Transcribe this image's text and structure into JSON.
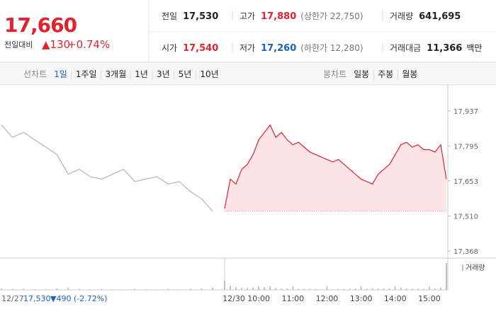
{
  "header": {
    "price": "17,660",
    "change_label": "전일대비",
    "change": "▲130",
    "rate": "+0.74%"
  },
  "summary": [
    {
      "label": "전일",
      "value": "17,530"
    },
    {
      "label": "고가",
      "value": "17,880",
      "note": "(상한가 22,750)"
    },
    {
      "label": "거래량",
      "value": "641,695"
    },
    {
      "label": "시가",
      "value": "17,540"
    },
    {
      "label": "저가",
      "value": "17,260",
      "note": "(하한가 12,280)"
    },
    {
      "label": "거래대금",
      "value": "11,366",
      "unit": "백만"
    }
  ],
  "tabs": {
    "line": {
      "label": "선차트",
      "items": [
        "1일",
        "1주일",
        "3개월",
        "1년",
        "3년",
        "5년",
        "10년"
      ]
    },
    "candle": {
      "label": "봉차트",
      "items": [
        "일봉",
        "주봉",
        "월봉"
      ]
    }
  },
  "prev_day": {
    "close": "17,530",
    "change": "▼490",
    "rate": "(-2.72%)"
  },
  "chart_data": {
    "type": "line",
    "categories": [
      "12/27",
      null,
      null,
      null,
      null,
      null,
      null,
      null,
      null,
      null,
      null,
      null,
      null,
      null,
      null,
      null,
      null,
      null,
      null,
      null,
      "12/30",
      null,
      null,
      null,
      null,
      null,
      "10:00",
      null,
      null,
      null,
      null,
      null,
      "11:00",
      null,
      null,
      null,
      null,
      null,
      "12:00",
      null,
      null,
      null,
      null,
      null,
      "13:00",
      null,
      null,
      null,
      null,
      null,
      "14:00",
      null,
      null,
      null,
      null,
      null,
      "15:00",
      null,
      null,
      null
    ],
    "series": [
      {
        "color": "#b5b5b5",
        "values": [
          17880,
          17830,
          17850,
          17820,
          17790,
          17760,
          17680,
          17700,
          17670,
          17660,
          17680,
          17700,
          17650,
          17660,
          17670,
          17640,
          17650,
          17610,
          17580,
          17530,
          null,
          null,
          null,
          null,
          null,
          null,
          null,
          null,
          null,
          null,
          null,
          null,
          null,
          null,
          null,
          null,
          null,
          null,
          null,
          null,
          null,
          null,
          null,
          null,
          null,
          null,
          null,
          null,
          null,
          null,
          null,
          null,
          null,
          null,
          null,
          null,
          null,
          null,
          null,
          null
        ]
      },
      {
        "color": "#e0232e",
        "fill": "#fde4e7",
        "values": [
          null,
          null,
          null,
          null,
          null,
          null,
          null,
          null,
          null,
          null,
          null,
          null,
          null,
          null,
          null,
          null,
          null,
          null,
          null,
          null,
          17540,
          17660,
          17640,
          17700,
          17720,
          17760,
          17820,
          17850,
          17880,
          17830,
          17850,
          17820,
          17800,
          17810,
          17790,
          17770,
          17760,
          17750,
          17740,
          17730,
          17740,
          17720,
          17700,
          17680,
          17660,
          17650,
          17640,
          17680,
          17700,
          17720,
          17760,
          17800,
          17810,
          17790,
          17800,
          17780,
          17780,
          17770,
          17800,
          17660
        ]
      }
    ],
    "baseline": 17530,
    "ylim": [
      17339,
      18029
    ],
    "yticks": [
      {
        "value": 17368,
        "label": "17,368"
      },
      {
        "value": 17510,
        "label": "17,510"
      },
      {
        "value": 17653,
        "label": "17,653"
      },
      {
        "value": 17795,
        "label": "17,795"
      },
      {
        "value": 17937,
        "label": "17,937"
      }
    ],
    "volume": {
      "label": "거래량",
      "color": "#bcbcd6",
      "values": [
        3000,
        2000,
        2500,
        1500,
        2000,
        3000,
        4000,
        2000,
        1500,
        2000,
        1500,
        1000,
        2000,
        1500,
        1000,
        2000,
        1500,
        2500,
        3000,
        5000,
        20000,
        9000,
        6000,
        5000,
        4000,
        5000,
        7000,
        6000,
        8000,
        4000,
        3000,
        3000,
        2500,
        2000,
        2000,
        2500,
        2000,
        1500,
        1500,
        1500,
        2000,
        2000,
        2500,
        3000,
        3000,
        2500,
        4000,
        3000,
        3000,
        3500,
        4000,
        5000,
        3000,
        2500,
        2500,
        2000,
        3000,
        3500,
        5000,
        60000
      ]
    }
  }
}
